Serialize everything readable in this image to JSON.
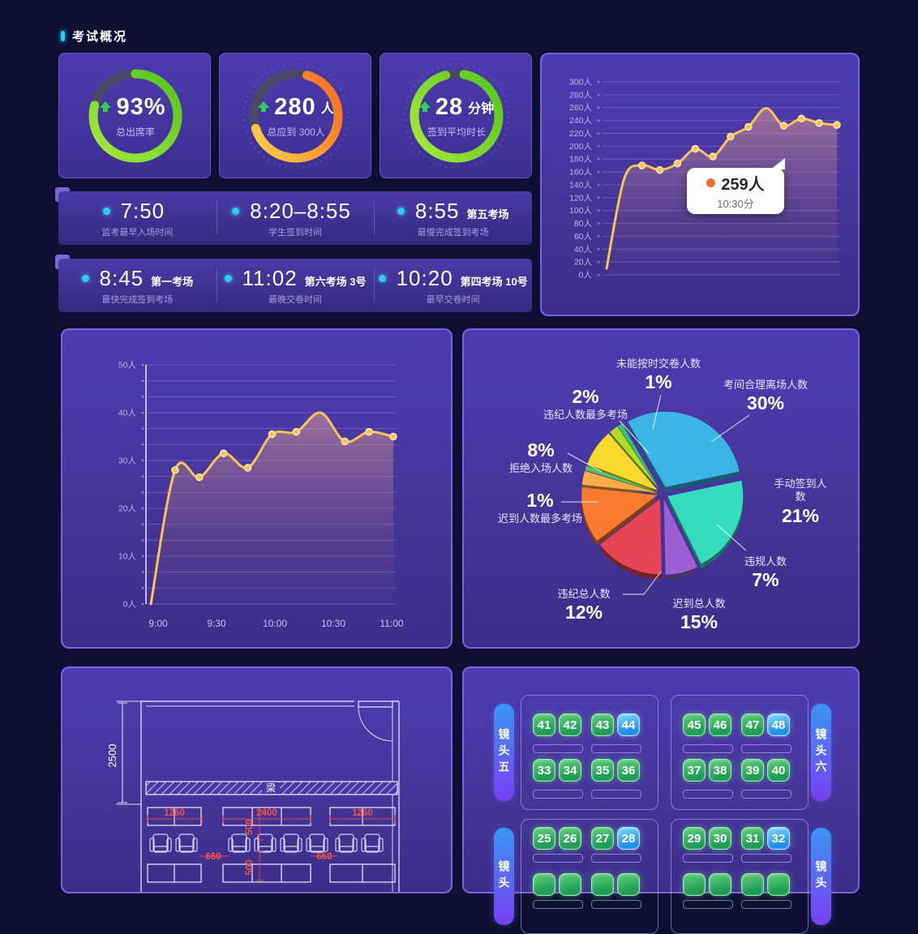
{
  "header": {
    "section_title": "考试概况"
  },
  "overview": {
    "cards": [
      {
        "value": "93%",
        "unit": "",
        "label": "总出席率",
        "ring_percent": 79,
        "ring_colors": [
          "#a9e93e",
          "#52c41e"
        ]
      },
      {
        "value": "280",
        "unit": "人",
        "label": "总应到 300人",
        "ring_percent": 66,
        "ring_colors": [
          "#ffd34e",
          "#f2691f"
        ]
      },
      {
        "value": "28",
        "unit": "分钟",
        "label": "签到平均时长",
        "ring_percent": 93,
        "ring_colors": [
          "#a9e93e",
          "#52c41e"
        ]
      }
    ],
    "strips": [
      [
        {
          "time": "7:50",
          "suffix": "",
          "label": "监考最早入场时间"
        },
        {
          "time": "8:20–8:55",
          "suffix": "",
          "label": "学生签到时间"
        },
        {
          "time": "8:55",
          "suffix": "第五考场",
          "label": "最慢完成签到考场"
        }
      ],
      [
        {
          "time": "8:45",
          "suffix": "第一考场",
          "label": "最快完成签到考场"
        },
        {
          "time": "11:02",
          "suffix": "第六考场 3号",
          "label": "最晚交卷时间"
        },
        {
          "time": "10:20",
          "suffix": "第四考场 10号",
          "label": "最早交卷时间"
        }
      ]
    ]
  },
  "chart_data": [
    {
      "type": "line",
      "y_unit": "人",
      "ylim": [
        0,
        300
      ],
      "y_tick_step": 20,
      "x_labels": [],
      "values": [
        10,
        150,
        170,
        163,
        173,
        196,
        184,
        215,
        230,
        259,
        232,
        243,
        236,
        233
      ],
      "no_dot_indices": [
        0,
        1,
        9
      ],
      "line_color": "#f9c358",
      "tooltip": {
        "value": "259人",
        "time": "10:30分"
      }
    },
    {
      "type": "line",
      "y_unit": "人",
      "ylim": [
        0,
        50
      ],
      "y_tick_step": 10,
      "x_labels": [
        "9:00",
        "9:30",
        "10:00",
        "10:30",
        "11:00"
      ],
      "values": [
        0,
        28,
        26.5,
        31.5,
        28.5,
        35.5,
        36,
        40,
        34,
        36,
        35
      ],
      "no_dot_indices": [
        0,
        7
      ],
      "line_color": "#f9c358"
    },
    {
      "type": "pie",
      "start_angle_deg": -30,
      "slices": [
        {
          "label": "考间合理离场人数",
          "pct": 30,
          "color": "#3cb4e6"
        },
        {
          "label": "手动签到人数",
          "pct": 21,
          "color": "#35dcc0"
        },
        {
          "label": "违规人数",
          "pct": 7,
          "color": "#9c5fd4"
        },
        {
          "label": "迟到总人数",
          "pct": 15,
          "color": "#e64555"
        },
        {
          "label": "违纪总人数",
          "pct": 12,
          "color": "#f97b2f"
        },
        {
          "label": "",
          "pct": 3,
          "color": "#fbab4a"
        },
        {
          "label": "迟到人数最多考场",
          "pct": 1,
          "color": "#4fc46a"
        },
        {
          "label": "拒绝入场人数",
          "pct": 8,
          "color": "#f6d92c"
        },
        {
          "label": "违纪人数最多考场",
          "pct": 2,
          "color": "#b0dc28"
        },
        {
          "label": "未能按时交卷人数",
          "pct": 1,
          "color": "#3dbf76"
        }
      ]
    }
  ],
  "floorplan": {
    "beam_label": "梁",
    "dim_height": "2500",
    "dim_left": "1260",
    "dim_mid": "2400",
    "dim_right": "1260",
    "dim_gap1": "500",
    "dim_gap2": "500",
    "dim_chair_left": "660",
    "dim_chair_right": "660"
  },
  "seatmap": {
    "sections": [
      {
        "left_label": "镜头五",
        "right_label": "镜头六",
        "groups": [
          {
            "rows": [
              [
                "41",
                "42",
                "43",
                "44"
              ],
              [
                "33",
                "34",
                "35",
                "36"
              ]
            ],
            "highlight": [
              "44"
            ]
          },
          {
            "rows": [
              [
                "45",
                "46",
                "47",
                "48"
              ],
              [
                "37",
                "38",
                "39",
                "40"
              ]
            ],
            "highlight": [
              "48"
            ]
          }
        ]
      },
      {
        "left_label": "镜头",
        "right_label": "镜头",
        "groups": [
          {
            "rows": [
              [
                "25",
                "26",
                "27",
                "28"
              ],
              [
                "",
                "",
                "",
                ""
              ]
            ],
            "highlight": [
              "28"
            ]
          },
          {
            "rows": [
              [
                "29",
                "30",
                "31",
                "32"
              ],
              [
                "",
                "",
                "",
                ""
              ]
            ],
            "highlight": [
              "32"
            ]
          }
        ]
      }
    ]
  }
}
